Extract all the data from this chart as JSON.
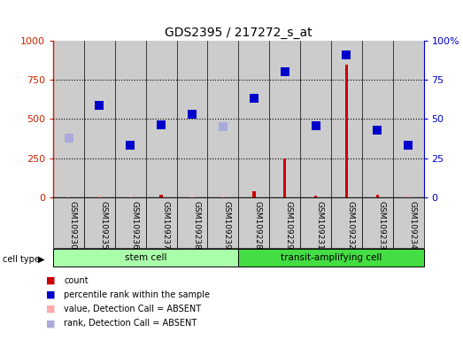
{
  "title": "GDS2395 / 217272_s_at",
  "samples": [
    "GSM109230",
    "GSM109235",
    "GSM109236",
    "GSM109237",
    "GSM109238",
    "GSM109239",
    "GSM109228",
    "GSM109229",
    "GSM109231",
    "GSM109232",
    "GSM109233",
    "GSM109234"
  ],
  "cell_groups": [
    {
      "label": "stem cell",
      "start": 0,
      "end": 5,
      "color": "#aaffaa"
    },
    {
      "label": "transit-amplifying cell",
      "start": 6,
      "end": 11,
      "color": "#44dd44"
    }
  ],
  "count_values": [
    5,
    8,
    5,
    18,
    5,
    5,
    40,
    250,
    8,
    850,
    15,
    8
  ],
  "count_absent": [
    true,
    true,
    true,
    false,
    true,
    true,
    false,
    false,
    false,
    false,
    false,
    true
  ],
  "percentile_rank": [
    380,
    590,
    330,
    460,
    530,
    450,
    635,
    800,
    455,
    910,
    430,
    330
  ],
  "percentile_absent": [
    true,
    false,
    false,
    false,
    false,
    true,
    false,
    false,
    false,
    false,
    false,
    false
  ],
  "left_ylim": [
    0,
    1000
  ],
  "right_ylim": [
    0,
    100
  ],
  "left_yticks": [
    0,
    250,
    500,
    750,
    1000
  ],
  "right_yticks": [
    0,
    25,
    50,
    75,
    100
  ],
  "left_color": "#cc2200",
  "right_color": "#0000cc",
  "sample_box_color": "#cccccc",
  "count_present_color": "#cc0000",
  "count_absent_color": "#ffaaaa",
  "rank_present_color": "#0000cc",
  "rank_absent_color": "#aaaadd"
}
